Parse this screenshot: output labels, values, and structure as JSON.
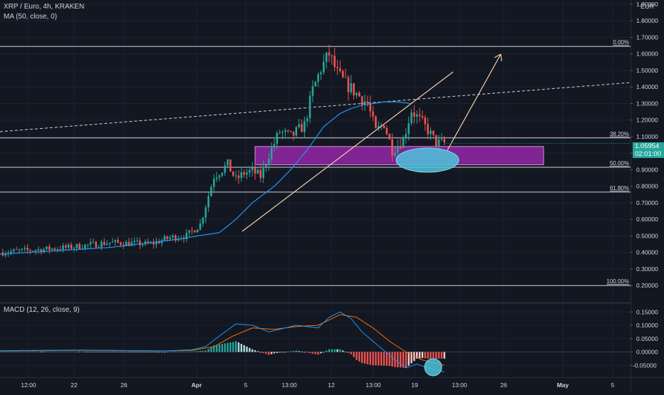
{
  "header": {
    "symbol_title": "XRP / Euro, 4h, KRAKEN",
    "indicator_ma": "MA (50, close, 0)",
    "currency": "EUR",
    "indicator_macd": "MACD (12, 26, close, 9)",
    "current_price": "1.05954",
    "countdown": "02:01:00"
  },
  "colors": {
    "background": "#131722",
    "up_candle": "#26a69a",
    "down_candle": "#ef5350",
    "ma_line": "#2196f3",
    "macd_line": "#2196f3",
    "signal_line": "#ff6d00",
    "fib_line": "#d1d4dc",
    "zone_fill": "#9c27b0",
    "ellipse_fill": "#4fc3dc",
    "trend_line": "#f5d0a9",
    "text": "#d1d4dc"
  },
  "chart_data": [
    {
      "type": "candlestick",
      "title": "XRP / Euro, 4h, KRAKEN",
      "x_ticks": [
        "12:00",
        "22",
        "26",
        "Apr",
        "5",
        "13:00",
        "12",
        "13:00",
        "19",
        "13:00",
        "26",
        "May",
        "5"
      ],
      "y_ticks": [
        "0.20000",
        "0.30000",
        "0.40000",
        "0.50000",
        "0.60000",
        "0.70000",
        "0.80000",
        "0.90000",
        "1.00000",
        "1.10000",
        "1.20000",
        "1.30000",
        "1.40000",
        "1.50000",
        "1.60000",
        "1.70000",
        "1.80000",
        "1.90000"
      ],
      "ylim": [
        0.13,
        1.93
      ],
      "fib_levels": [
        {
          "label": "0.00%",
          "value": 1.645
        },
        {
          "label": "38.20%",
          "value": 1.092
        },
        {
          "label": "50.00%",
          "value": 0.915
        },
        {
          "label": "61.80%",
          "value": 0.765
        },
        {
          "label": "100.00%",
          "value": 0.2
        }
      ],
      "price_path_bars": [
        0,
        25,
        40,
        55,
        62,
        68,
        73,
        78,
        83,
        86,
        89,
        92,
        95,
        98,
        102,
        106,
        111,
        114,
        117,
        120,
        123,
        126,
        130,
        134,
        137,
        140,
        143,
        147,
        150,
        153,
        156,
        159,
        162
      ],
      "price_path_values": [
        0.4,
        0.43,
        0.46,
        0.45,
        0.49,
        0.5,
        0.57,
        0.86,
        0.93,
        0.84,
        0.88,
        0.89,
        0.86,
        0.99,
        1.13,
        1.1,
        1.17,
        1.38,
        1.51,
        1.6,
        1.48,
        1.42,
        1.36,
        1.3,
        1.13,
        1.18,
        1.02,
        1.08,
        1.26,
        1.2,
        1.14,
        1.06,
        1.06
      ],
      "ma50_bars": [
        0,
        20,
        40,
        55,
        65,
        72,
        80,
        86,
        92,
        100,
        106,
        112,
        118,
        124,
        128,
        132,
        136,
        140,
        145,
        150
      ],
      "ma50_values": [
        0.39,
        0.41,
        0.43,
        0.46,
        0.48,
        0.5,
        0.52,
        0.6,
        0.7,
        0.8,
        0.9,
        1.02,
        1.16,
        1.24,
        1.27,
        1.29,
        1.3,
        1.31,
        1.31,
        1.3
      ],
      "last_bar_index": 162,
      "current_price": 1.05954,
      "support_zone": [
        0.93,
        1.04
      ],
      "annotations": [
        {
          "type": "support-ellipse",
          "center": [
            1.0,
            0.99
          ]
        },
        {
          "type": "projection-arrow",
          "from_price": 1.04,
          "to_price": 1.67
        }
      ]
    },
    {
      "type": "macd",
      "title": "MACD (12, 26, close, 9)",
      "params": [
        12,
        26,
        9
      ],
      "y_ticks": [
        "-0.05000",
        "0.00000",
        "0.05000",
        "0.10000",
        "0.15000"
      ],
      "ylim": [
        -0.08,
        0.17
      ],
      "macd_bars": [
        0,
        30,
        60,
        70,
        75,
        80,
        86,
        92,
        98,
        104,
        108,
        112,
        116,
        120,
        124,
        128,
        132,
        136,
        140,
        144,
        148,
        152,
        156,
        160,
        162
      ],
      "macd_values": [
        0.005,
        0.007,
        0.004,
        0.008,
        0.02,
        0.06,
        0.105,
        0.1,
        0.075,
        0.09,
        0.1,
        0.095,
        0.09,
        0.13,
        0.15,
        0.125,
        0.075,
        0.04,
        0.005,
        -0.03,
        -0.06,
        -0.045,
        -0.06,
        -0.07,
        -0.075
      ],
      "signal_bars": [
        0,
        30,
        60,
        70,
        78,
        85,
        92,
        100,
        108,
        116,
        124,
        130,
        136,
        142,
        148,
        154,
        160,
        162
      ],
      "signal_values": [
        0.004,
        0.006,
        0.004,
        0.006,
        0.02,
        0.06,
        0.09,
        0.085,
        0.095,
        0.1,
        0.14,
        0.13,
        0.09,
        0.04,
        0.0,
        -0.03,
        -0.045,
        -0.05
      ]
    }
  ]
}
